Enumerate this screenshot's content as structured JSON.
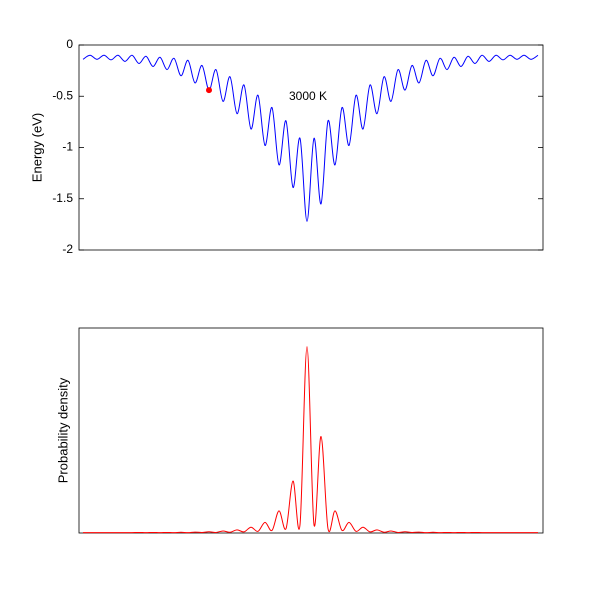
{
  "chart_data": [
    {
      "type": "line",
      "ylabel": "Energy (eV)",
      "annotation": "3000 K",
      "ylim": [
        -2,
        0
      ],
      "yticks": [
        0,
        -0.5,
        -1,
        -1.5,
        -2
      ],
      "series": [
        {
          "color": "#0000ff",
          "values": [
            -0.14,
            -0.1,
            -0.14,
            -0.1,
            -0.145,
            -0.1,
            -0.16,
            -0.1,
            -0.18,
            -0.11,
            -0.21,
            -0.12,
            -0.24,
            -0.13,
            -0.3,
            -0.15,
            -0.37,
            -0.2,
            -0.44,
            -0.24,
            -0.55,
            -0.31,
            -0.67,
            -0.39,
            -0.82,
            -0.49,
            -0.98,
            -0.61,
            -1.17,
            -0.74,
            -1.39,
            -0.91,
            -1.72,
            -0.91,
            -1.55,
            -0.74,
            -1.17,
            -0.61,
            -0.98,
            -0.49,
            -0.82,
            -0.39,
            -0.67,
            -0.31,
            -0.55,
            -0.24,
            -0.44,
            -0.2,
            -0.37,
            -0.15,
            -0.3,
            -0.13,
            -0.24,
            -0.12,
            -0.21,
            -0.11,
            -0.18,
            -0.1,
            -0.16,
            -0.1,
            -0.145,
            -0.1,
            -0.14,
            -0.1,
            -0.14,
            -0.1
          ]
        },
        {
          "color": "#ff0000",
          "style": "marker",
          "values": [
            null,
            null,
            null,
            null,
            null,
            null,
            null,
            null,
            null,
            null,
            null,
            null,
            null,
            null,
            null,
            null,
            null,
            null,
            -0.44,
            null,
            null,
            null,
            null,
            null,
            null,
            null,
            null,
            null,
            null,
            null,
            null,
            null,
            null,
            null,
            null,
            null,
            null,
            null,
            null,
            null,
            null,
            null,
            null,
            null,
            null,
            null,
            null,
            null,
            null,
            null,
            null,
            null,
            null,
            null,
            null,
            null,
            null,
            null,
            null,
            null,
            null,
            null,
            null,
            null,
            null,
            null
          ]
        }
      ]
    },
    {
      "type": "line",
      "ylabel": "Probability density",
      "ylim": [
        0,
        1.1
      ],
      "series": [
        {
          "color": "#ff0000",
          "values": [
            0.002,
            0.002,
            0.002,
            0.002,
            0.002,
            0.002,
            0.002,
            0.002,
            0.003,
            0.002,
            0.003,
            0.002,
            0.003,
            0.002,
            0.004,
            0.002,
            0.005,
            0.003,
            0.007,
            0.003,
            0.011,
            0.004,
            0.017,
            0.006,
            0.031,
            0.009,
            0.057,
            0.014,
            0.119,
            0.023,
            0.279,
            0.044,
            1,
            0.044,
            0.518,
            0.023,
            0.119,
            0.014,
            0.057,
            0.009,
            0.031,
            0.006,
            0.017,
            0.004,
            0.011,
            0.003,
            0.007,
            0.003,
            0.005,
            0.002,
            0.004,
            0.002,
            0.003,
            0.002,
            0.003,
            0.002,
            0.003,
            0.002,
            0.002,
            0.002,
            0.002,
            0.002,
            0.002,
            0.002,
            0.002,
            0.002
          ]
        }
      ]
    }
  ]
}
